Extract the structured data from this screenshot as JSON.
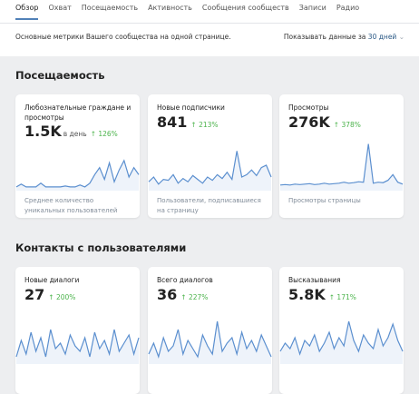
{
  "tabs": [
    "Обзор",
    "Охват",
    "Посещаемость",
    "Активность",
    "Сообщения сообществ",
    "Записи",
    "Радио"
  ],
  "intro": {
    "text": "Основные метрики Вашего сообщества на одной странице.",
    "period_label": "Показывать данные за",
    "period_value": "30 дней"
  },
  "sections": [
    {
      "title": "Посещаемость",
      "cards": [
        {
          "title": "Любознательные граждане и просмотры",
          "value": "1.5K",
          "unit": "в день",
          "growth": "126%",
          "description": "Среднее количество уникальных пользователей",
          "sparkline": [
            4,
            10,
            4,
            4,
            4,
            12,
            4,
            4,
            4,
            4,
            6,
            4,
            4,
            8,
            4,
            12,
            30,
            45,
            20,
            55,
            15,
            40,
            60,
            25,
            45,
            30
          ]
        },
        {
          "title": "Новые подписчики",
          "value": "841",
          "unit": null,
          "growth": "213%",
          "description": "Пользователи, подписавшиеся на страницу",
          "sparkline": [
            15,
            25,
            10,
            20,
            18,
            30,
            12,
            22,
            15,
            28,
            20,
            12,
            25,
            18,
            30,
            22,
            35,
            20,
            80,
            25,
            30,
            40,
            28,
            45,
            50,
            25
          ]
        },
        {
          "title": "Просмотры",
          "value": "276K",
          "unit": null,
          "growth": "378%",
          "description": "Просмотры страницы",
          "sparkline": [
            8,
            9,
            8,
            10,
            9,
            10,
            11,
            9,
            10,
            12,
            10,
            11,
            12,
            14,
            12,
            13,
            15,
            14,
            95,
            12,
            14,
            13,
            18,
            30,
            14,
            10
          ]
        }
      ]
    },
    {
      "title": "Контакты с пользователями",
      "cards": [
        {
          "title": "Новые диалоги",
          "value": "27",
          "unit": null,
          "growth": "200%",
          "description": null,
          "sparkline": [
            10,
            40,
            15,
            55,
            20,
            45,
            10,
            60,
            25,
            35,
            15,
            50,
            30,
            20,
            45,
            10,
            55,
            25,
            40,
            15,
            60,
            20,
            35,
            50,
            15,
            45
          ]
        },
        {
          "title": "Всего диалогов",
          "value": "36",
          "unit": null,
          "growth": "227%",
          "description": null,
          "sparkline": [
            15,
            35,
            10,
            45,
            20,
            30,
            60,
            15,
            40,
            25,
            10,
            50,
            30,
            15,
            75,
            20,
            35,
            45,
            15,
            55,
            25,
            40,
            20,
            50,
            30,
            10
          ]
        },
        {
          "title": "Высказывания",
          "value": "5.8K",
          "unit": null,
          "growth": "171%",
          "description": null,
          "sparkline": [
            20,
            35,
            25,
            45,
            15,
            40,
            30,
            50,
            20,
            35,
            55,
            25,
            45,
            30,
            75,
            40,
            20,
            50,
            35,
            25,
            60,
            30,
            45,
            70,
            40,
            20
          ]
        }
      ]
    }
  ]
}
